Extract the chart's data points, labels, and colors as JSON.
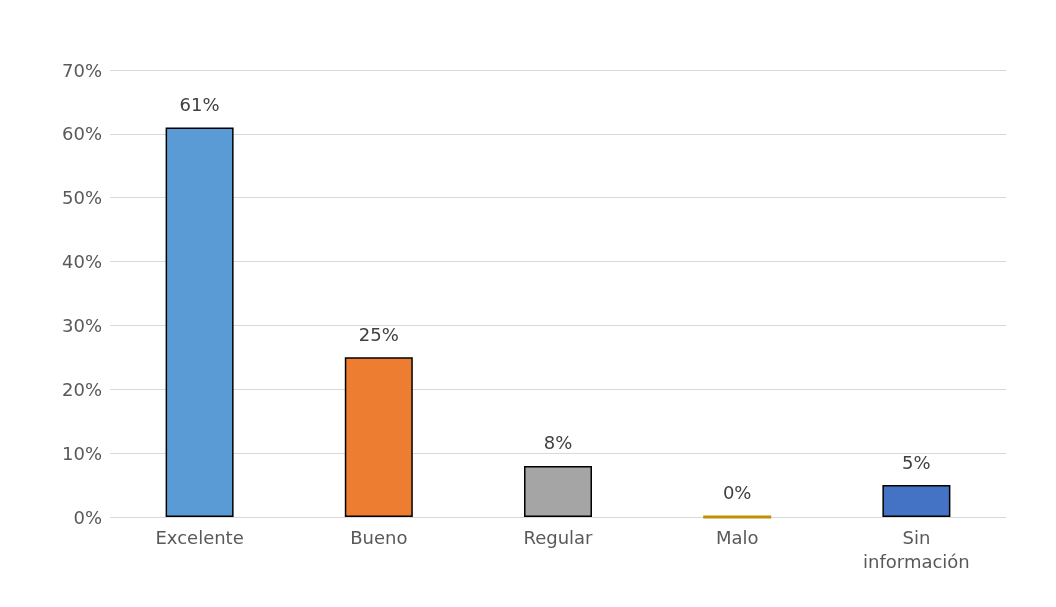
{
  "chart_data": {
    "type": "bar",
    "categories": [
      "Excelente",
      "Bueno",
      "Regular",
      "Malo",
      "Sin\ninformación"
    ],
    "values": [
      61,
      25,
      8,
      0,
      5
    ],
    "colors": [
      "#5b9bd5",
      "#ed7d31",
      "#a5a5a5",
      "#bf9000",
      "#4472c4"
    ],
    "value_labels": [
      "61%",
      "25%",
      "8%",
      "0%",
      "5%"
    ],
    "ylim": [
      0,
      70
    ],
    "yticks": [
      {
        "value": 0,
        "label": "0%"
      },
      {
        "value": 10,
        "label": "10%"
      },
      {
        "value": 20,
        "label": "20%"
      },
      {
        "value": 30,
        "label": "30%"
      },
      {
        "value": 40,
        "label": "40%"
      },
      {
        "value": 50,
        "label": "50%"
      },
      {
        "value": 60,
        "label": "60%"
      },
      {
        "value": 70,
        "label": "70%"
      }
    ],
    "grid": true
  }
}
